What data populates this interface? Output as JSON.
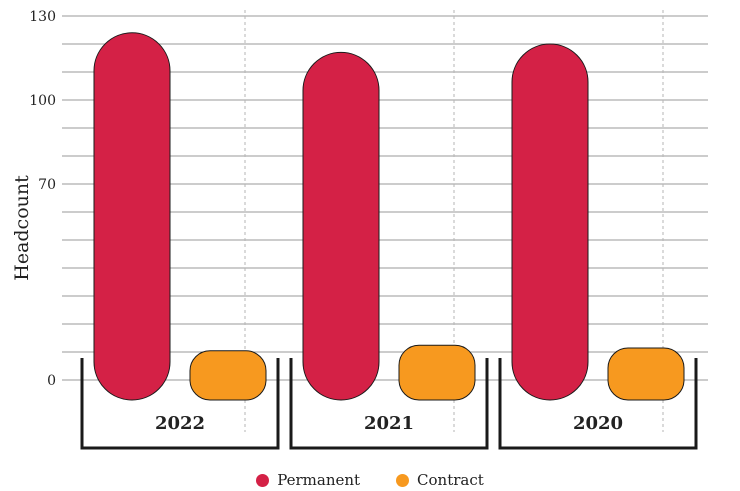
{
  "chart_data": {
    "type": "bar",
    "title": "",
    "xlabel": "",
    "ylabel": "Headcount",
    "categories": [
      "2022",
      "2021",
      "2020"
    ],
    "series": [
      {
        "name": "Permanent",
        "color": "#D42146",
        "values": [
          124,
          117,
          120
        ]
      },
      {
        "name": "Contract",
        "color": "#F7991F",
        "values": [
          9,
          11,
          10
        ]
      }
    ],
    "y_ticks": [
      0,
      70,
      100,
      130
    ],
    "ylim": [
      -5,
      130
    ],
    "grid": "horizontal",
    "legend": "bottom-center"
  }
}
